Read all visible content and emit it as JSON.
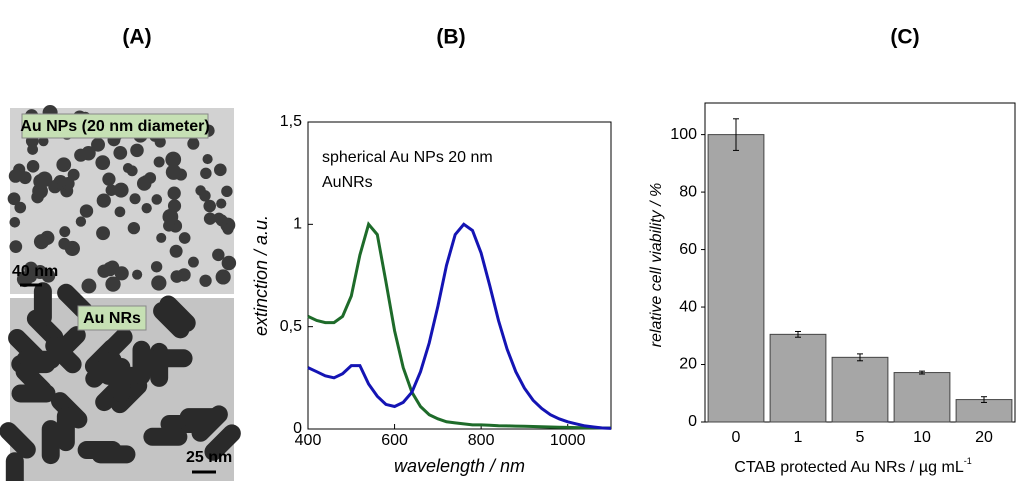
{
  "panels": [
    "(A)",
    "(B)",
    "(C)"
  ],
  "images": {
    "top_label": "Au NPs (20 nm diameter)",
    "top_scale": "40 nm",
    "bottom_label": "Au NRs",
    "bottom_scale": "25 nm"
  },
  "chart_data": [
    {
      "type": "line",
      "xlabel": "wavelength / nm",
      "ylabel": "extinction / a.u.",
      "x": [
        400,
        420,
        440,
        460,
        480,
        500,
        520,
        540,
        560,
        580,
        600,
        620,
        640,
        660,
        680,
        700,
        720,
        740,
        760,
        780,
        800,
        820,
        840,
        860,
        880,
        900,
        920,
        940,
        960,
        980,
        1000,
        1020,
        1040,
        1060,
        1080,
        1100
      ],
      "series": [
        {
          "name": "spherical Au NPs 20 nm",
          "color": "#1e6b2a",
          "values": [
            0.55,
            0.53,
            0.52,
            0.52,
            0.55,
            0.65,
            0.85,
            1.0,
            0.95,
            0.72,
            0.48,
            0.3,
            0.18,
            0.11,
            0.07,
            0.05,
            0.035,
            0.03,
            0.025,
            0.02,
            0.02,
            0.018,
            0.016,
            0.015,
            0.014,
            0.013,
            0.012,
            0.011,
            0.01,
            0.009,
            0.008,
            0.007,
            0.006,
            0.006,
            0.005,
            0.005
          ]
        },
        {
          "name": "AuNRs",
          "color": "#1414b4",
          "values": [
            0.3,
            0.28,
            0.26,
            0.25,
            0.27,
            0.31,
            0.31,
            0.22,
            0.16,
            0.12,
            0.11,
            0.13,
            0.18,
            0.28,
            0.42,
            0.6,
            0.8,
            0.95,
            1.0,
            0.97,
            0.86,
            0.7,
            0.53,
            0.39,
            0.28,
            0.2,
            0.14,
            0.1,
            0.07,
            0.05,
            0.035,
            0.025,
            0.015,
            0.01,
            0.005,
            0.003
          ]
        }
      ],
      "xlim": [
        400,
        1100
      ],
      "xticks": [
        400,
        600,
        800,
        1000
      ],
      "ylim": [
        0,
        1.5
      ],
      "yticks": [
        0,
        {
          "value": 0.5,
          "label": "0,5"
        },
        1,
        {
          "value": 1.5,
          "label": "1,5"
        }
      ]
    },
    {
      "type": "bar",
      "xlabel": "CTAB protected Au NRs  / µg mL",
      "xlabel_sup": "-1",
      "ylabel": "relative cell viability / %",
      "categories": [
        "0",
        "1",
        "5",
        "10",
        "20"
      ],
      "values": [
        100,
        30.5,
        22.5,
        17.2,
        7.8
      ],
      "errors": [
        5.5,
        1,
        1.2,
        0.5,
        1
      ],
      "color": "#a6a6a6",
      "ylim": [
        0,
        111
      ],
      "yticks": [
        0,
        20,
        40,
        60,
        80,
        100
      ]
    }
  ]
}
